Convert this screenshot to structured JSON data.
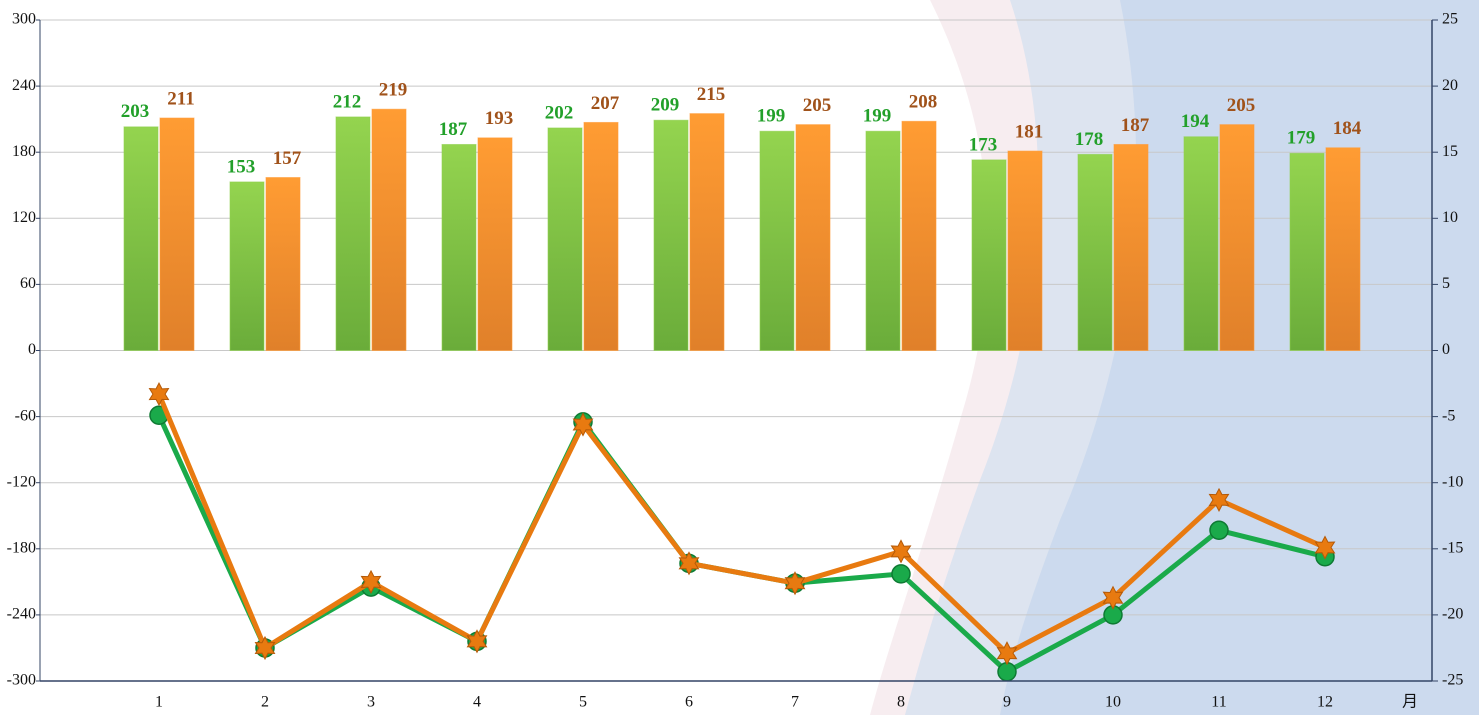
{
  "chart_data": {
    "type": "bar",
    "categories": [
      "1",
      "2",
      "3",
      "4",
      "5",
      "6",
      "7",
      "8",
      "9",
      "10",
      "11",
      "12"
    ],
    "x_label": "月",
    "ylim": [
      -300,
      300
    ],
    "yticks": [
      -300,
      -240,
      -180,
      -120,
      -60,
      0,
      60,
      120,
      180,
      240,
      300
    ],
    "y2lim": [
      -25,
      25
    ],
    "y2ticks": [
      -25,
      -20,
      -15,
      -10,
      -5,
      0,
      5,
      10,
      15,
      20,
      25
    ],
    "grid": true,
    "series": [
      {
        "type": "bar",
        "color": "#8fd14f",
        "label_color": "#22a02a",
        "values": [
          203,
          153,
          212,
          187,
          202,
          209,
          199,
          199,
          173,
          178,
          194,
          179
        ]
      },
      {
        "type": "bar",
        "color": "#ff9a33",
        "label_color": "#a0521a",
        "values": [
          211,
          157,
          219,
          193,
          207,
          215,
          205,
          208,
          181,
          187,
          205,
          184
        ]
      },
      {
        "type": "line",
        "axis": "y2",
        "marker": "circle",
        "color": "#1aaa4a",
        "values": [
          -4.9,
          -22.5,
          -17.9,
          -22.0,
          -5.4,
          -16.1,
          -17.6,
          -16.9,
          -24.3,
          -20.0,
          -13.6,
          -15.6
        ]
      },
      {
        "type": "line",
        "axis": "y2",
        "marker": "star",
        "color": "#e87a10",
        "values": [
          -3.3,
          -22.5,
          -17.5,
          -22.0,
          -5.6,
          -16.1,
          -17.6,
          -15.2,
          -22.9,
          -18.7,
          -11.3,
          -14.9
        ]
      }
    ]
  }
}
